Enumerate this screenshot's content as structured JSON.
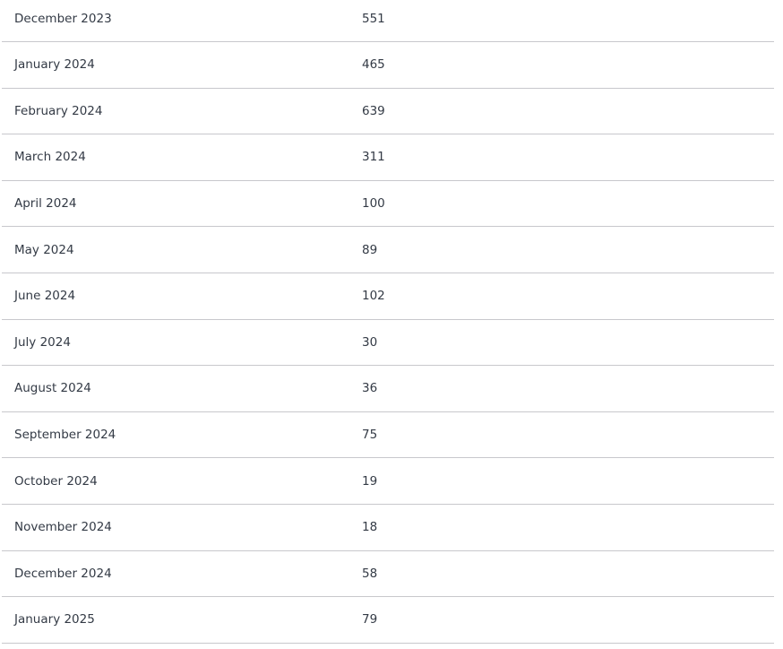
{
  "table": {
    "rows": [
      {
        "month": "December 2023",
        "value": "551"
      },
      {
        "month": "January 2024",
        "value": "465"
      },
      {
        "month": "February 2024",
        "value": "639"
      },
      {
        "month": "March 2024",
        "value": "311"
      },
      {
        "month": "April 2024",
        "value": "100"
      },
      {
        "month": "May 2024",
        "value": "89"
      },
      {
        "month": "June 2024",
        "value": "102"
      },
      {
        "month": "July 2024",
        "value": "30"
      },
      {
        "month": "August 2024",
        "value": "36"
      },
      {
        "month": "September 2024",
        "value": "75"
      },
      {
        "month": "October 2024",
        "value": "19"
      },
      {
        "month": "November 2024",
        "value": "18"
      },
      {
        "month": "December 2024",
        "value": "58"
      },
      {
        "month": "January 2025",
        "value": "79"
      }
    ]
  }
}
